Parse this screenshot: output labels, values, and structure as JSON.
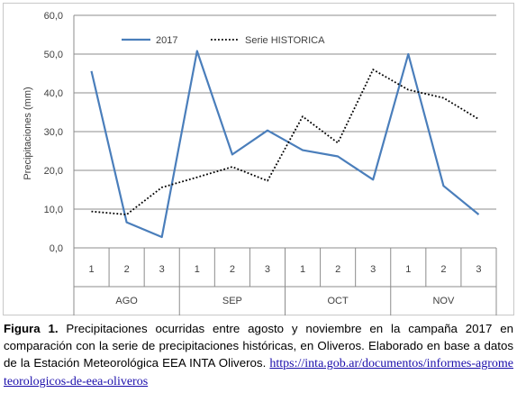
{
  "chart_data": {
    "type": "line",
    "ylabel": "Precipitaciones (mm)",
    "ylim": [
      0,
      60
    ],
    "yticks": [
      "0,0",
      "10,0",
      "20,0",
      "30,0",
      "40,0",
      "50,0",
      "60,0"
    ],
    "grid": true,
    "legend_position": "top",
    "x": [
      "1",
      "2",
      "3",
      "1",
      "2",
      "3",
      "1",
      "2",
      "3",
      "1",
      "2",
      "3"
    ],
    "groups": [
      {
        "label": "AGO",
        "count": 3
      },
      {
        "label": "SEP",
        "count": 3
      },
      {
        "label": "OCT",
        "count": 3
      },
      {
        "label": "NOV",
        "count": 3
      }
    ],
    "series": [
      {
        "name": "2017",
        "style": "solid",
        "color": "#4a7ebb",
        "values": [
          45.6,
          6.6,
          2.8,
          50.8,
          24.1,
          30.3,
          25.2,
          23.6,
          17.6,
          50.0,
          16.0,
          8.6
        ]
      },
      {
        "name": "Serie HISTORICA",
        "style": "dotted",
        "color": "#000000",
        "values": [
          9.4,
          8.6,
          15.6,
          18.2,
          20.9,
          17.3,
          33.9,
          27.1,
          46.0,
          40.8,
          38.7,
          33.2
        ]
      }
    ]
  },
  "caption": {
    "label": "Figura 1.",
    "text": " Precipitaciones ocurridas entre agosto y noviembre en la campaña 2017 en comparación con la serie de precipitaciones históricas, en Oliveros. Elaborado en base a datos de la Estación Meteorológica EEA INTA Oliveros. ",
    "link": "https://inta.gob.ar/documentos/informes-agrometeorologicos-de-eea-oliveros"
  }
}
